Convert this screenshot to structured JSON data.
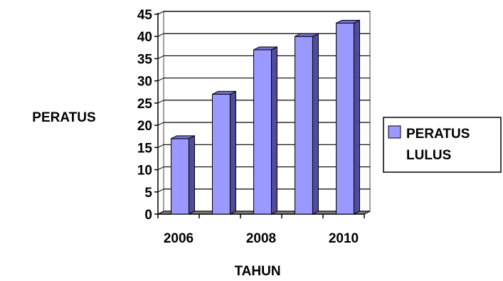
{
  "chart_data": {
    "type": "bar",
    "style": "3d-column",
    "title": "",
    "xlabel": "TAHUN",
    "ylabel": "PERATUS",
    "categories": [
      "2006",
      "2007",
      "2008",
      "2009",
      "2010"
    ],
    "x_tick_labels": [
      "2006",
      "2008",
      "2010"
    ],
    "series": [
      {
        "name": "PERATUS LULUS",
        "values": [
          17,
          27,
          37,
          40,
          43
        ]
      }
    ],
    "ylim": [
      0,
      45
    ],
    "y_ticks": [
      0,
      5,
      10,
      15,
      20,
      25,
      30,
      35,
      40,
      45
    ],
    "grid": true,
    "legend": "right",
    "colors": {
      "bar_front": "#9999ff",
      "bar_side": "#4d4d99",
      "bar_top": "#7373cc",
      "floor": "#808080",
      "wall": "#ffffff"
    }
  }
}
